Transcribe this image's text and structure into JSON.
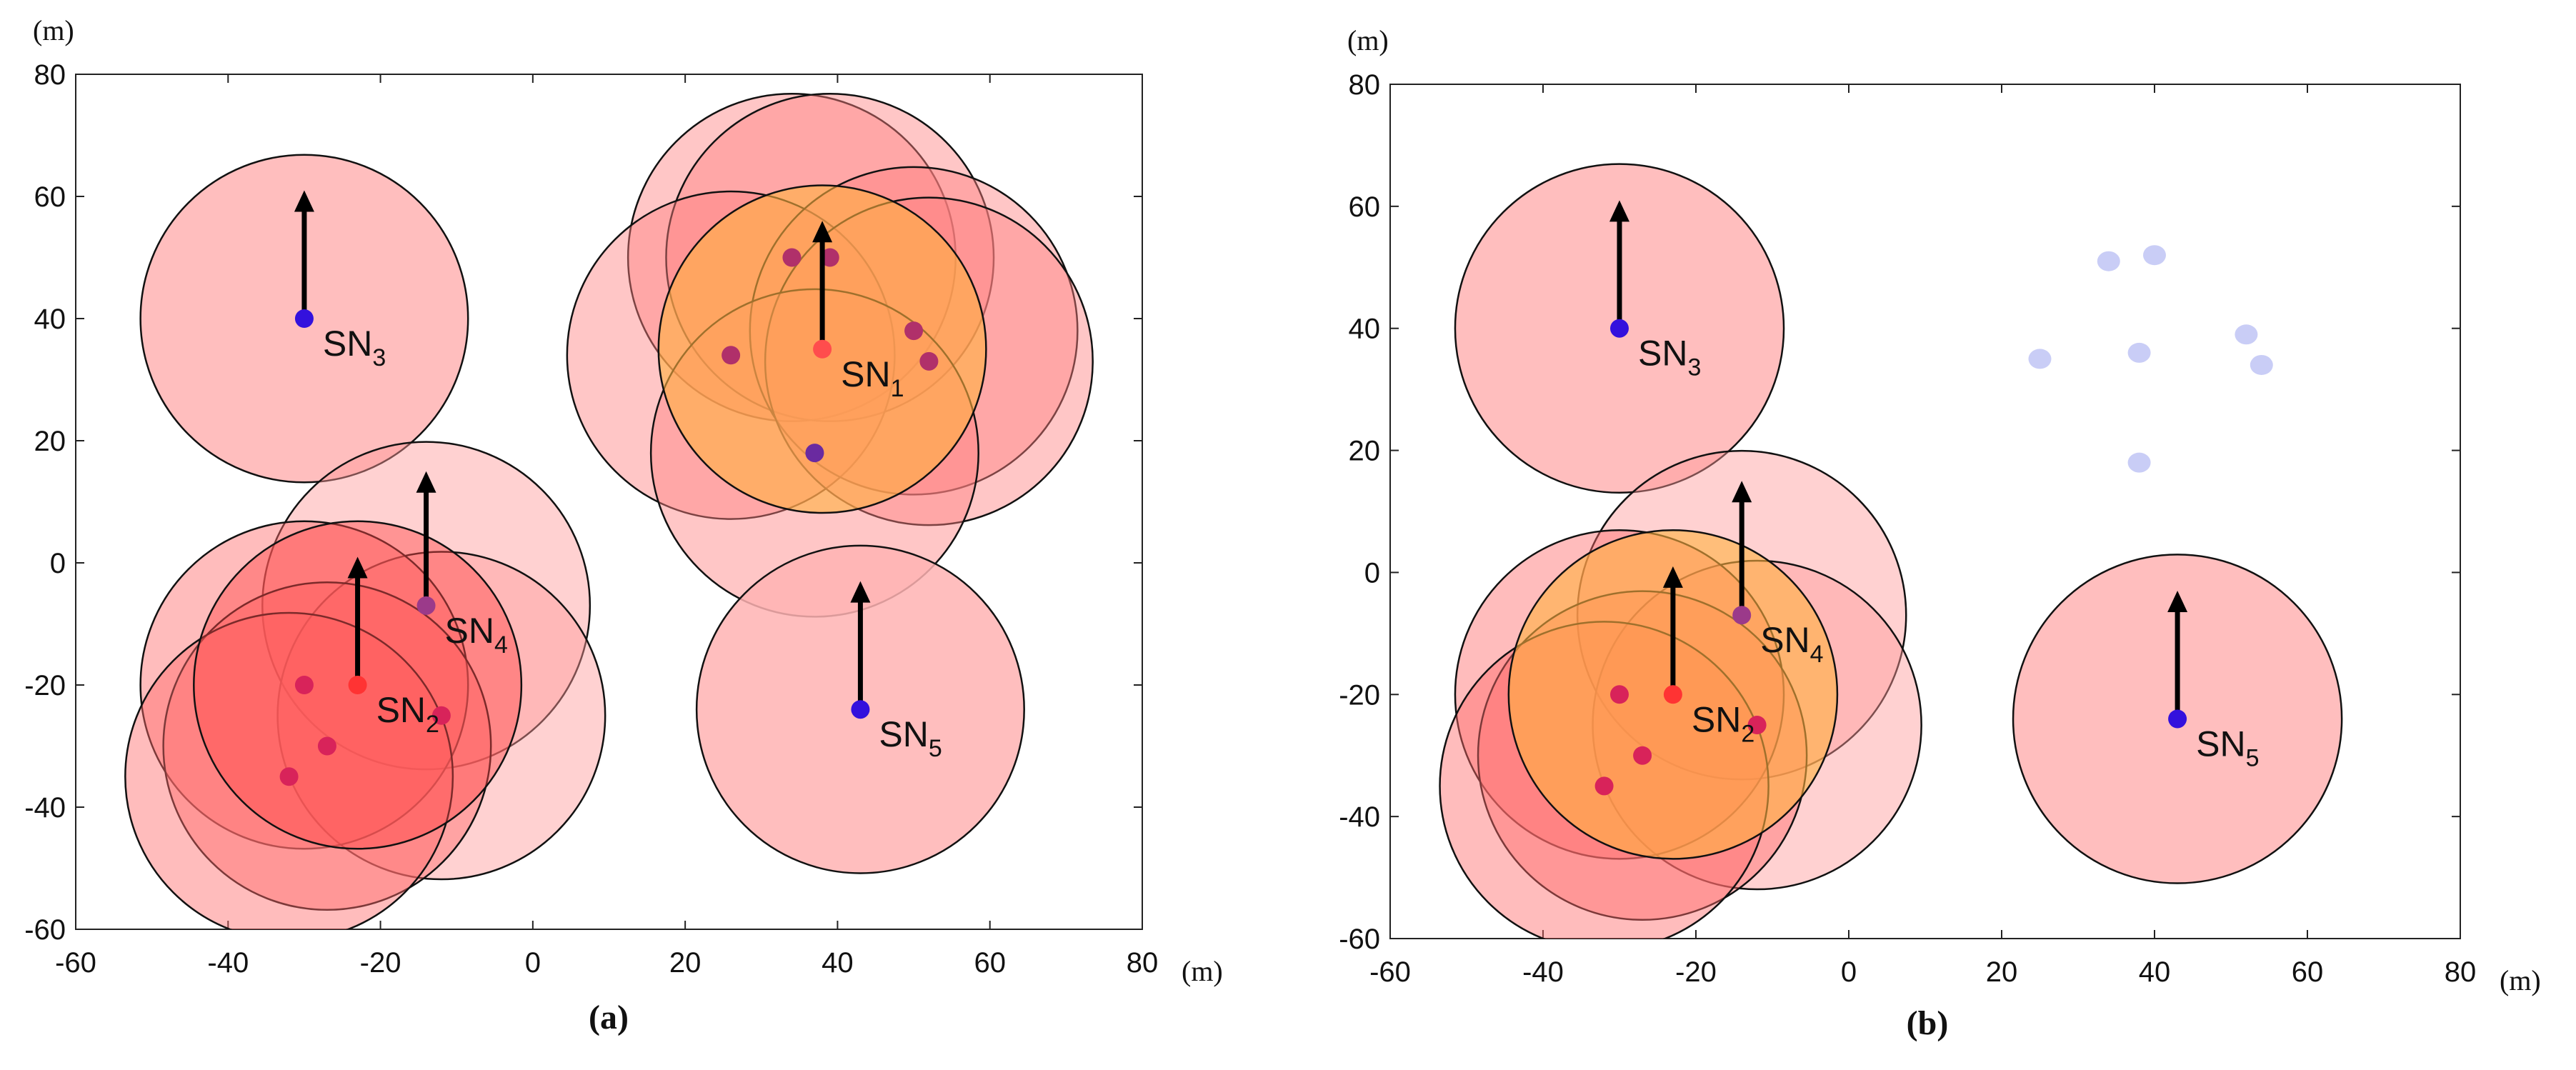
{
  "chart_data": [
    {
      "type": "scatter",
      "caption": "(a)",
      "x_unit": "(m)",
      "y_unit": "(m)",
      "xlim": [
        -60,
        80
      ],
      "ylim": [
        -60,
        80
      ],
      "xticks": [
        -60,
        -40,
        -20,
        0,
        20,
        40,
        60,
        80
      ],
      "yticks": [
        80,
        60,
        40,
        20,
        0,
        -20,
        -40,
        -60
      ],
      "coverage_radius": 21.5,
      "sink_nodes": [
        {
          "label": "SN",
          "sub": "1",
          "x": 38,
          "y": 35,
          "arrow_to": 56,
          "color": "#ff4d4d"
        },
        {
          "label": "SN",
          "sub": "2",
          "x": -23,
          "y": -20,
          "arrow_to": 1,
          "color": "#ff3333"
        },
        {
          "label": "SN",
          "sub": "3",
          "x": -30,
          "y": 40,
          "arrow_to": 61,
          "color": "#3311dd"
        },
        {
          "label": "SN",
          "sub": "4",
          "x": -14,
          "y": -7,
          "arrow_to": 15,
          "color": "#9b3a8a"
        },
        {
          "label": "SN",
          "sub": "5",
          "x": 43,
          "y": -24,
          "arrow_to": -3,
          "color": "#3311dd"
        }
      ],
      "sensors": [
        {
          "x": 34,
          "y": 50,
          "color": "#b0306a"
        },
        {
          "x": 39,
          "y": 50,
          "color": "#b0306a"
        },
        {
          "x": 26,
          "y": 34,
          "color": "#b0306a"
        },
        {
          "x": 50,
          "y": 38,
          "color": "#b0306a"
        },
        {
          "x": 52,
          "y": 33,
          "color": "#b0306a"
        },
        {
          "x": 37,
          "y": 18,
          "color": "#6a2aa0"
        },
        {
          "x": -30,
          "y": -20,
          "color": "#d8235a"
        },
        {
          "x": -27,
          "y": -30,
          "color": "#d8235a"
        },
        {
          "x": -32,
          "y": -35,
          "color": "#d8235a"
        },
        {
          "x": -12,
          "y": -25,
          "color": "#d8235a"
        }
      ],
      "coverage_circles": [
        {
          "x": 34,
          "y": 50,
          "fill": "#ff8080",
          "opacity": 0.45
        },
        {
          "x": 39,
          "y": 50,
          "fill": "#ff8080",
          "opacity": 0.45
        },
        {
          "x": 26,
          "y": 34,
          "fill": "#ff8080",
          "opacity": 0.45
        },
        {
          "x": 50,
          "y": 38,
          "fill": "#ff8080",
          "opacity": 0.45
        },
        {
          "x": 52,
          "y": 33,
          "fill": "#ff8080",
          "opacity": 0.45
        },
        {
          "x": 37,
          "y": 18,
          "fill": "#ff8080",
          "opacity": 0.45
        },
        {
          "x": 38,
          "y": 35,
          "fill": "#ffb040",
          "opacity": 0.6
        },
        {
          "x": -30,
          "y": 40,
          "fill": "#ffb3b3",
          "opacity": 0.85
        },
        {
          "x": 43,
          "y": -24,
          "fill": "#ffb3b3",
          "opacity": 0.85
        },
        {
          "x": -14,
          "y": -7,
          "fill": "#ff9a9a",
          "opacity": 0.45
        },
        {
          "x": -12,
          "y": -25,
          "fill": "#ff9a9a",
          "opacity": 0.45
        },
        {
          "x": -30,
          "y": -20,
          "fill": "#ff6a6a",
          "opacity": 0.45
        },
        {
          "x": -27,
          "y": -30,
          "fill": "#ff6a6a",
          "opacity": 0.45
        },
        {
          "x": -32,
          "y": -35,
          "fill": "#ff6a6a",
          "opacity": 0.45
        },
        {
          "x": -23,
          "y": -20,
          "fill": "#ff4a4a",
          "opacity": 0.45
        }
      ]
    },
    {
      "type": "scatter",
      "caption": "(b)",
      "x_unit": "(m)",
      "y_unit": "(m)",
      "xlim": [
        -60,
        80
      ],
      "ylim": [
        -60,
        80
      ],
      "xticks": [
        -60,
        -40,
        -20,
        0,
        20,
        40,
        60,
        80
      ],
      "yticks": [
        80,
        60,
        40,
        20,
        0,
        -20,
        -40,
        -60
      ],
      "coverage_radius": 21.5,
      "sink_nodes": [
        {
          "label": "SN",
          "sub": "2",
          "x": -23,
          "y": -20,
          "arrow_to": 1,
          "color": "#ff3333"
        },
        {
          "label": "SN",
          "sub": "3",
          "x": -30,
          "y": 40,
          "arrow_to": 61,
          "color": "#3311dd"
        },
        {
          "label": "SN",
          "sub": "4",
          "x": -14,
          "y": -7,
          "arrow_to": 15,
          "color": "#9b3a8a"
        },
        {
          "label": "SN",
          "sub": "5",
          "x": 43,
          "y": -24,
          "arrow_to": -3,
          "color": "#3311dd"
        }
      ],
      "sensors": [
        {
          "x": -30,
          "y": -20,
          "color": "#d8235a"
        },
        {
          "x": -27,
          "y": -30,
          "color": "#d8235a"
        },
        {
          "x": -32,
          "y": -35,
          "color": "#d8235a"
        },
        {
          "x": -12,
          "y": -25,
          "color": "#d8235a"
        }
      ],
      "faded_sensors": [
        {
          "x": 34,
          "y": 51
        },
        {
          "x": 40,
          "y": 52
        },
        {
          "x": 25,
          "y": 35
        },
        {
          "x": 38,
          "y": 36
        },
        {
          "x": 52,
          "y": 39
        },
        {
          "x": 54,
          "y": 34
        },
        {
          "x": 38,
          "y": 18
        }
      ],
      "coverage_circles": [
        {
          "x": -30,
          "y": 40,
          "fill": "#ffb3b3",
          "opacity": 0.85
        },
        {
          "x": 43,
          "y": -24,
          "fill": "#ffb3b3",
          "opacity": 0.85
        },
        {
          "x": -14,
          "y": -7,
          "fill": "#ff9a9a",
          "opacity": 0.45
        },
        {
          "x": -12,
          "y": -25,
          "fill": "#ff9a9a",
          "opacity": 0.45
        },
        {
          "x": -30,
          "y": -20,
          "fill": "#ff6a6a",
          "opacity": 0.45
        },
        {
          "x": -27,
          "y": -30,
          "fill": "#ff6a6a",
          "opacity": 0.45
        },
        {
          "x": -32,
          "y": -35,
          "fill": "#ff6a6a",
          "opacity": 0.45
        },
        {
          "x": -23,
          "y": -20,
          "fill": "#ffb040",
          "opacity": 0.6
        }
      ]
    }
  ]
}
